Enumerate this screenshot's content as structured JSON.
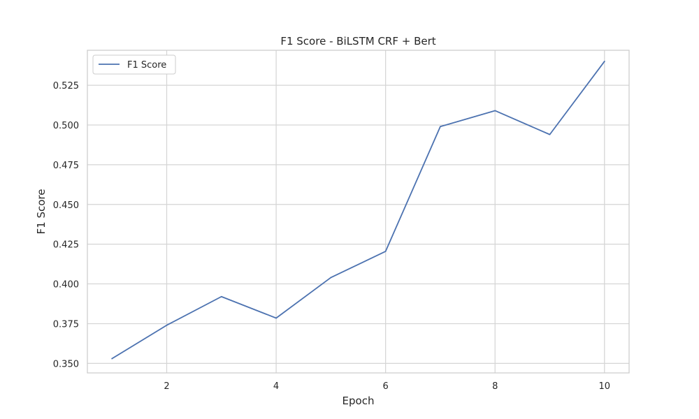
{
  "chart_data": {
    "type": "line",
    "title": "F1 Score - BiLSTM CRF + Bert",
    "xlabel": "Epoch",
    "ylabel": "F1 Score",
    "xlim": [
      0.55,
      10.45
    ],
    "ylim": [
      0.344,
      0.547
    ],
    "x_ticks": [
      2,
      4,
      6,
      8,
      10
    ],
    "x_tick_labels": [
      "2",
      "4",
      "6",
      "8",
      "10"
    ],
    "y_ticks": [
      0.35,
      0.375,
      0.4,
      0.425,
      0.45,
      0.475,
      0.5,
      0.525
    ],
    "y_tick_labels": [
      "0.350",
      "0.375",
      "0.400",
      "0.425",
      "0.450",
      "0.475",
      "0.500",
      "0.525"
    ],
    "grid": true,
    "legend_position": "top-left",
    "series": [
      {
        "name": "F1 Score",
        "color": "#4c72b0",
        "x": [
          1,
          2,
          3,
          4,
          5,
          6,
          7,
          8,
          9,
          10
        ],
        "values": [
          0.353,
          0.374,
          0.392,
          0.3785,
          0.404,
          0.4205,
          0.499,
          0.509,
          0.494,
          0.54
        ]
      }
    ]
  },
  "colors": {
    "grid": "#d5d5d5",
    "frame": "#cccccc",
    "text": "#262626"
  }
}
